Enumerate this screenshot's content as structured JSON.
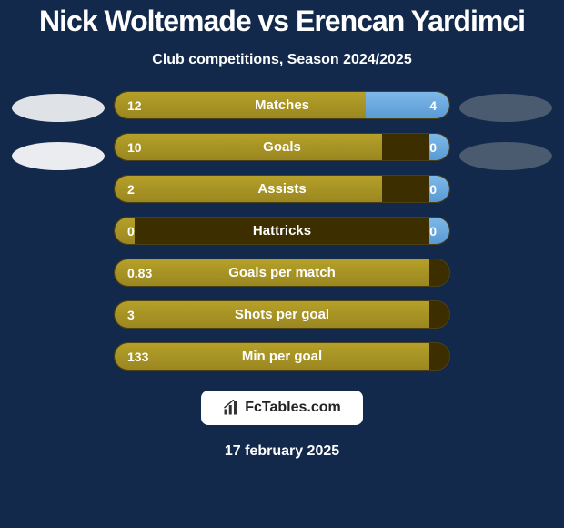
{
  "header": {
    "title": "Nick Woltemade vs Erencan Yardimci",
    "subtitle": "Club competitions, Season 2024/2025"
  },
  "players": {
    "left": {
      "oval_colors": [
        "#dfe3e8",
        "#eaecef"
      ]
    },
    "right": {
      "oval_colors": [
        "#4a5a6f",
        "#4a5a6f"
      ]
    }
  },
  "stats": [
    {
      "label": "Matches",
      "left_val": "12",
      "right_val": "4",
      "left_pct": 75,
      "right_pct": 25
    },
    {
      "label": "Goals",
      "left_val": "10",
      "right_val": "0",
      "left_pct": 80,
      "right_pct": 6
    },
    {
      "label": "Assists",
      "left_val": "2",
      "right_val": "0",
      "left_pct": 80,
      "right_pct": 6
    },
    {
      "label": "Hattricks",
      "left_val": "0",
      "right_val": "0",
      "left_pct": 6,
      "right_pct": 6
    },
    {
      "label": "Goals per match",
      "left_val": "0.83",
      "right_val": "",
      "left_pct": 94,
      "right_pct": 0
    },
    {
      "label": "Shots per goal",
      "left_val": "3",
      "right_val": "",
      "left_pct": 94,
      "right_pct": 0
    },
    {
      "label": "Min per goal",
      "left_val": "133",
      "right_val": "",
      "left_pct": 94,
      "right_pct": 0
    }
  ],
  "colors": {
    "background": "#13294b",
    "bar_left": "#a69024",
    "bar_right": "#6caee0",
    "bar_track": "#3d2e00",
    "text": "#ffffff"
  },
  "footer": {
    "brand": "FcTables.com",
    "date": "17 february 2025"
  }
}
